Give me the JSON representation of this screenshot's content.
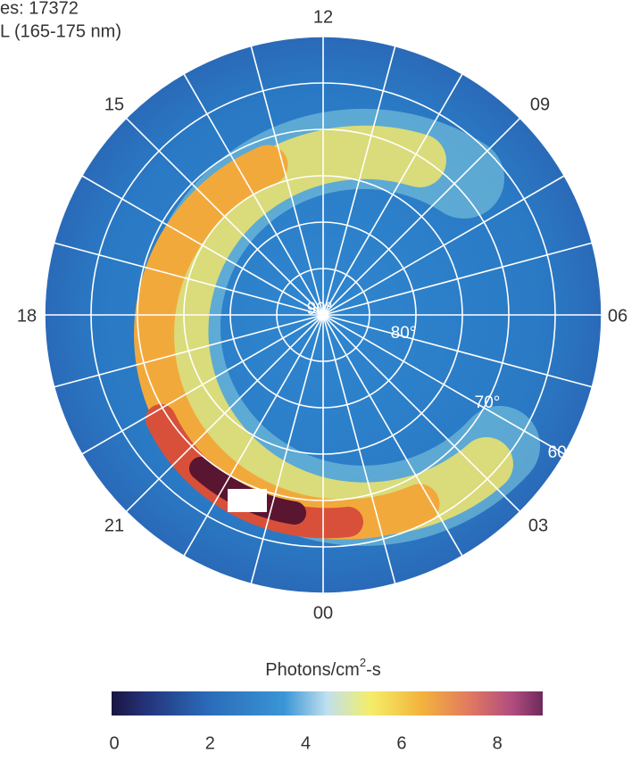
{
  "header": {
    "line1": "es: 17372",
    "line2": "L (165-175 nm)"
  },
  "hours": [
    "12",
    "09",
    "06",
    "03",
    "00",
    "21",
    "18",
    "15"
  ],
  "latitudes": [
    "90°",
    "80°",
    "70°",
    "60°"
  ],
  "colorbar": {
    "title": "Photons/cm",
    "title_sup": "2",
    "title_end": "-s",
    "ticks": [
      "0",
      "2",
      "4",
      "6",
      "8"
    ]
  }
}
